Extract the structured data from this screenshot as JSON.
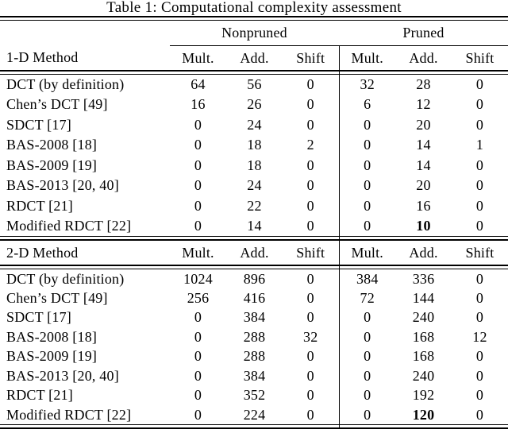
{
  "title": "Table 1: Computational complexity assessment",
  "group_headers": {
    "nonpruned": "Nonpruned",
    "pruned": "Pruned"
  },
  "columns": [
    "Mult.",
    "Add.",
    "Shift",
    "Mult.",
    "Add.",
    "Shift"
  ],
  "sections": [
    {
      "label": "1-D Method",
      "rows": [
        {
          "method": "DCT (by definition)",
          "values": [
            "64",
            "56",
            "0",
            "32",
            "28",
            "0"
          ],
          "bold_cols": []
        },
        {
          "method": "Chen’s DCT [49]",
          "values": [
            "16",
            "26",
            "0",
            "6",
            "12",
            "0"
          ],
          "bold_cols": []
        },
        {
          "method": "SDCT [17]",
          "values": [
            "0",
            "24",
            "0",
            "0",
            "20",
            "0"
          ],
          "bold_cols": []
        },
        {
          "method": "BAS-2008 [18]",
          "values": [
            "0",
            "18",
            "2",
            "0",
            "14",
            "1"
          ],
          "bold_cols": []
        },
        {
          "method": "BAS-2009 [19]",
          "values": [
            "0",
            "18",
            "0",
            "0",
            "14",
            "0"
          ],
          "bold_cols": []
        },
        {
          "method": "BAS-2013 [20, 40]",
          "values": [
            "0",
            "24",
            "0",
            "0",
            "20",
            "0"
          ],
          "bold_cols": []
        },
        {
          "method": "RDCT [21]",
          "values": [
            "0",
            "22",
            "0",
            "0",
            "16",
            "0"
          ],
          "bold_cols": []
        },
        {
          "method": "Modified RDCT [22]",
          "values": [
            "0",
            "14",
            "0",
            "0",
            "10",
            "0"
          ],
          "bold_cols": [
            4
          ]
        }
      ]
    },
    {
      "label": "2-D Method",
      "rows": [
        {
          "method": "DCT (by definition)",
          "values": [
            "1024",
            "896",
            "0",
            "384",
            "336",
            "0"
          ],
          "bold_cols": []
        },
        {
          "method": "Chen’s DCT [49]",
          "values": [
            "256",
            "416",
            "0",
            "72",
            "144",
            "0"
          ],
          "bold_cols": []
        },
        {
          "method": "SDCT [17]",
          "values": [
            "0",
            "384",
            "0",
            "0",
            "240",
            "0"
          ],
          "bold_cols": []
        },
        {
          "method": "BAS-2008 [18]",
          "values": [
            "0",
            "288",
            "32",
            "0",
            "168",
            "12"
          ],
          "bold_cols": []
        },
        {
          "method": "BAS-2009 [19]",
          "values": [
            "0",
            "288",
            "0",
            "0",
            "168",
            "0"
          ],
          "bold_cols": []
        },
        {
          "method": "BAS-2013 [20, 40]",
          "values": [
            "0",
            "384",
            "0",
            "0",
            "240",
            "0"
          ],
          "bold_cols": []
        },
        {
          "method": "RDCT [21]",
          "values": [
            "0",
            "352",
            "0",
            "0",
            "192",
            "0"
          ],
          "bold_cols": []
        },
        {
          "method": "Modified RDCT [22]",
          "values": [
            "0",
            "224",
            "0",
            "0",
            "120",
            "0"
          ],
          "bold_cols": [
            4
          ]
        }
      ]
    }
  ]
}
